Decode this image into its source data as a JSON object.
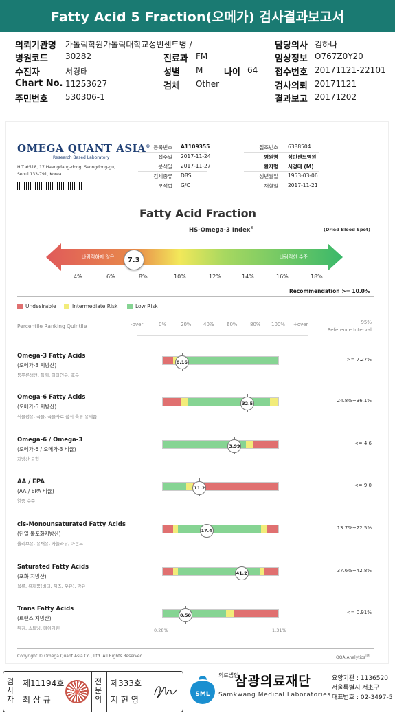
{
  "title": "Fatty Acid 5 Fraction(오메가) 검사결과보고서",
  "meta": {
    "institution_label": "의뢰기관명",
    "institution": "가톨릭학원가톨릭대학교성빈센트병 / -",
    "doctor_label": "담당의사",
    "doctor": "김하나",
    "hospital_code_label": "병원코드",
    "hospital_code": "30282",
    "dept_label": "진료과",
    "dept": "FM",
    "clinical_label": "임상정보",
    "clinical": "O767Z0Y20",
    "patient_label": "수진자",
    "patient": "서경태",
    "sex_label": "성별",
    "sex": "M",
    "age_label": "나이",
    "age": "64",
    "receipt_label": "접수번호",
    "receipt": "20171121-22101",
    "chart_label": "Chart No.",
    "chart": "11253627",
    "specimen_label": "검체",
    "specimen": "Other",
    "request_label": "검사의뢰",
    "request": "20171121",
    "id_label": "주민번호",
    "id": "530306-1",
    "report_label": "결과보고",
    "report": "20171202"
  },
  "lab": {
    "logo": "OMEGA QUANT ASIA",
    "logo_reg": "®",
    "logo_sub": "Research Based Laboratory",
    "address_1": "HIT #518, 17 Haengdang-dong, Seongdong-gu,",
    "address_2": "Seoul 133-791, Korea",
    "info": {
      "reg_no_label": "등록번호",
      "reg_no": "A1109355",
      "received_label": "접수일",
      "received": "2017-11-24",
      "analyzed_label": "분석일",
      "analyzed": "2017-11-27",
      "sample_type_label": "검체종류",
      "sample_type": "DBS",
      "method_label": "분석법",
      "method": "G/C",
      "receipt_no_label": "접조번호",
      "receipt_no": "6388504",
      "hospital_label": "병원명",
      "hospital": "성빈센트병원",
      "patient_label": "환자명",
      "patient": "서경태 (M)",
      "dob_label": "생년월일",
      "dob": "1953-03-06",
      "collected_label": "채혈일",
      "collected": "2017-11-21"
    }
  },
  "index": {
    "heading": "Fatty Acid Fraction",
    "subheading": "HS-Omega-3 Index",
    "subheading_reg": "®",
    "sample_note": "(Dried Blood Spot)",
    "left_text": "바람직하지 않은",
    "right_text": "바람직한 수준",
    "value_label": "7.3",
    "value": 7.3,
    "ticks": [
      "4%",
      "6%",
      "8%",
      "10%",
      "12%",
      "14%",
      "16%",
      "18%"
    ],
    "recommendation": "Recommendation  >= 10.0%"
  },
  "legend": {
    "undesirable": "Undesirable",
    "intermediate": "Intermediate Risk",
    "low": "Low Risk",
    "colors": {
      "undesirable": "#e07070",
      "intermediate": "#f2ec7a",
      "low": "#86d493"
    }
  },
  "quintile": {
    "label": "Percentile Ranking Quintile",
    "axis": [
      "-over",
      "0%",
      "20%",
      "40%",
      "60%",
      "80%",
      "100%",
      "+over"
    ],
    "ref_header_1": "95%",
    "ref_header_2": "Reference Interval"
  },
  "rows": [
    {
      "name": "Omega-3 Fatty Acids",
      "ko": "(오메가-3 지방산)",
      "note": "등푸른생선, 들깨, 아마인유, 호두",
      "value": "8.16",
      "pos": 0.17,
      "ref": ">= 7.27%",
      "segs": [
        [
          "r",
          0,
          0.09
        ],
        [
          "y",
          0.09,
          0.12
        ],
        [
          "g",
          0.12,
          1
        ]
      ]
    },
    {
      "name": "Omega-6 Fatty Acids",
      "ko": "(오메가-6 지방산)",
      "note": "식물성유, 곡물, 곡물사료 섭취 육류 유제품",
      "value": "32.5",
      "pos": 0.73,
      "ref": "24.8%~36.1%",
      "segs": [
        [
          "r",
          0,
          0.16
        ],
        [
          "y",
          0.16,
          0.22
        ],
        [
          "g",
          0.22,
          0.93
        ],
        [
          "y",
          0.93,
          1
        ]
      ]
    },
    {
      "name": "Omega-6 / Omega-3",
      "ko": "(오메가-6 / 오메가-3 비율)",
      "note": "지방산 균형",
      "value": "3.99",
      "pos": 0.62,
      "ref": "<= 4.6",
      "segs": [
        [
          "g",
          0,
          0.72
        ],
        [
          "y",
          0.72,
          0.78
        ],
        [
          "r",
          0.78,
          1
        ]
      ]
    },
    {
      "name": "AA / EPA",
      "ko": "(AA / EPA 비율)",
      "note": "염증 수준",
      "value": "11.2",
      "pos": 0.32,
      "ref": "<= 9.0",
      "segs": [
        [
          "g",
          0,
          0.2
        ],
        [
          "y",
          0.2,
          0.26
        ],
        [
          "r",
          0.26,
          1
        ]
      ]
    },
    {
      "name": "cis-Monounsaturated Fatty Acids",
      "ko": "(단일 불포화지방산)",
      "note": "올리브유, 유채유, 카놀라유, 아몬드",
      "value": "17.4",
      "pos": 0.38,
      "ref": "13.7%~22.5%",
      "segs": [
        [
          "r",
          0,
          0.09
        ],
        [
          "y",
          0.09,
          0.13
        ],
        [
          "g",
          0.13,
          0.85
        ],
        [
          "y",
          0.85,
          0.9
        ],
        [
          "r",
          0.9,
          1
        ]
      ]
    },
    {
      "name": "Saturated Fatty Acids",
      "ko": "(포화 지방산)",
      "note": "육류, 유제품(버터, 치즈, 우유), 팜유",
      "value": "41.2",
      "pos": 0.68,
      "ref": "37.6%~42.8%",
      "segs": [
        [
          "r",
          0,
          0.09
        ],
        [
          "y",
          0.09,
          0.13
        ],
        [
          "g",
          0.13,
          0.84
        ],
        [
          "y",
          0.84,
          0.88
        ],
        [
          "r",
          0.88,
          1
        ]
      ]
    },
    {
      "name": "Trans Fatty Acids",
      "ko": "(트랜스 지방산)",
      "note": "튀김, 쇼트닝, 마아가린",
      "value": "0.50",
      "pos": 0.2,
      "ref": "<= 0.91%",
      "segs": [
        [
          "g",
          0,
          0.55
        ],
        [
          "y",
          0.55,
          0.62
        ],
        [
          "r",
          0.62,
          1
        ]
      ],
      "min_label": "0.28%",
      "max_label": "1.31%"
    }
  ],
  "footer": {
    "copyright": "Copyright © Omega Quant Asia Co., Ltd.  All Rights Reserved.",
    "analytics": "OQA Analytics",
    "analytics_tm": "TM"
  },
  "signatures": {
    "examiner_label": "검사자",
    "examiner_no": "제11194호",
    "examiner_name": "최 삼 규",
    "specialist_label": "전문의",
    "specialist_no": "제333호",
    "specialist_name": "지 현 영",
    "org_prefix": "의료법인",
    "org_ko": "삼광의료재단",
    "org_en": "Samkwang Medical Laboratories",
    "sml": "SML",
    "line1": "요양기관 : 1136520",
    "line2": "서울특별시 서초구",
    "line3": "대표번호 : 02-3497-5"
  }
}
